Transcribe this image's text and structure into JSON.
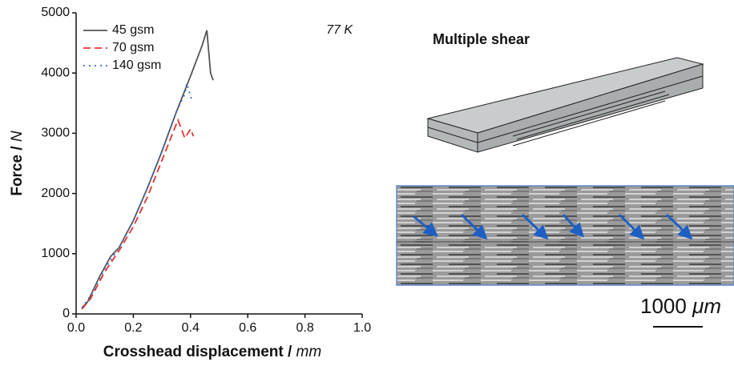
{
  "chart_data": {
    "type": "line",
    "x_label": "Crosshead displacement / ",
    "x_label_unit": "mm",
    "y_label": "Force / ",
    "y_label_unit": "N",
    "annotation": "77 K",
    "xlim": [
      0,
      1.0
    ],
    "xticks": [
      {
        "value": 0,
        "label": "0.0"
      },
      0.2,
      0.4,
      0.6,
      0.8,
      {
        "value": 1.0,
        "label": "1.0"
      }
    ],
    "ylim": [
      0,
      5000
    ],
    "yticks": [
      0,
      1000,
      2000,
      3000,
      4000,
      5000
    ],
    "legend": "upper left",
    "series": [
      {
        "name": "45 gsm",
        "color": "#555555",
        "style": "solid",
        "x": [
          0.02,
          0.04,
          0.08,
          0.12,
          0.15,
          0.2,
          0.25,
          0.3,
          0.35,
          0.4,
          0.44,
          0.457,
          0.47,
          0.479
        ],
        "values": [
          100,
          200,
          600,
          950,
          1100,
          1550,
          2100,
          2700,
          3350,
          3950,
          4450,
          4710,
          4000,
          3880
        ]
      },
      {
        "name": "70 gsm",
        "color": "#e8312f",
        "style": "dashed",
        "x": [
          0.02,
          0.05,
          0.1,
          0.15,
          0.2,
          0.25,
          0.3,
          0.35,
          0.356,
          0.38,
          0.4,
          0.41
        ],
        "values": [
          80,
          250,
          700,
          1050,
          1450,
          1950,
          2550,
          3150,
          3220,
          2920,
          3070,
          2950
        ]
      },
      {
        "name": "140 gsm",
        "color": "#2b6fd6",
        "style": "dotted",
        "x": [
          0.02,
          0.05,
          0.1,
          0.15,
          0.2,
          0.25,
          0.3,
          0.35,
          0.38,
          0.387,
          0.406
        ],
        "values": [
          100,
          300,
          750,
          1100,
          1550,
          2100,
          2700,
          3350,
          3650,
          3830,
          3520
        ]
      }
    ]
  },
  "panel": {
    "title": "Multiple shear",
    "scale_bar": "1000 ",
    "scale_bar_unit": "μm"
  }
}
